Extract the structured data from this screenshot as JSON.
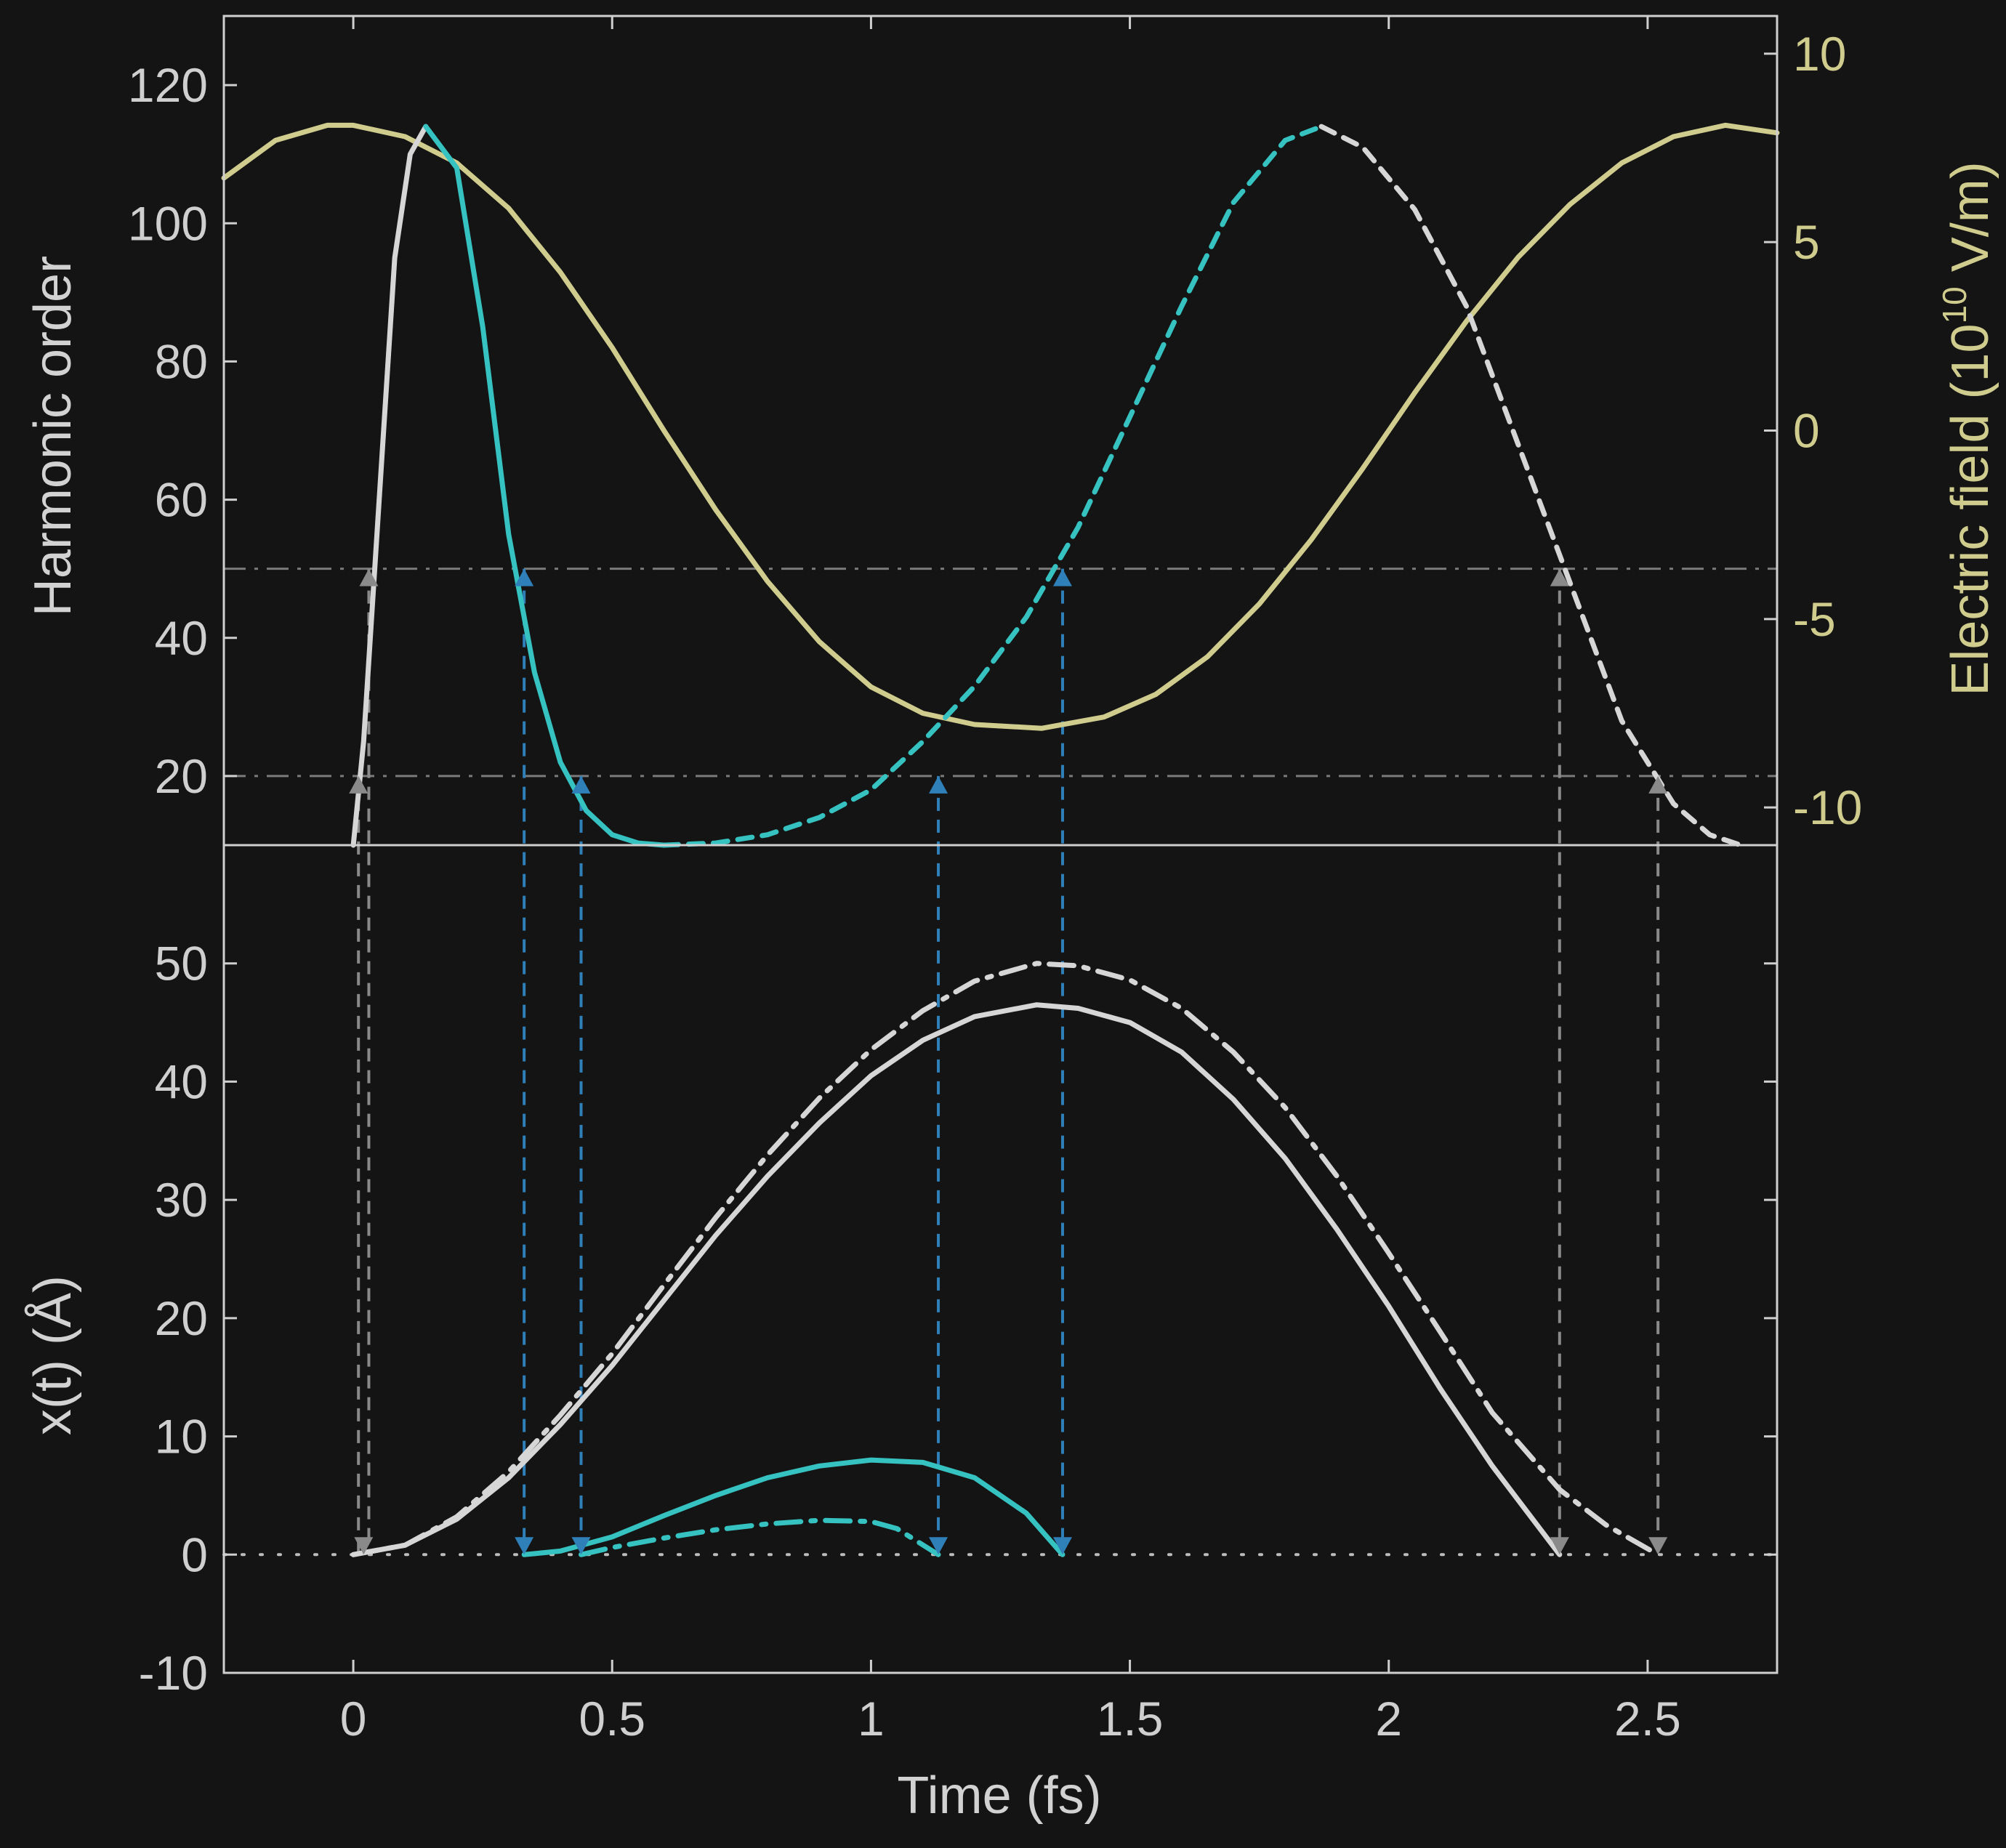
{
  "chart_data": [
    {
      "type": "line",
      "panel": "top",
      "xlabel": "Time (fs)",
      "ylabel": "Harmonic order",
      "y2label_main": "Electric field (10",
      "y2label_sup": "10",
      "y2label_tail": " V/m)",
      "xlim": [
        -0.25,
        2.75
      ],
      "ylim": [
        10,
        130
      ],
      "y2lim": [
        -11,
        11
      ],
      "yticks": [
        20,
        40,
        60,
        80,
        100,
        120
      ],
      "y2ticks": [
        -10,
        -5,
        0,
        5,
        10
      ],
      "ytick_labels": [
        "20",
        "40",
        "60",
        "80",
        "100",
        "120"
      ],
      "y2tick_labels": [
        "-10",
        "-5",
        "0",
        "5",
        "10"
      ],
      "reference_lines": [
        50,
        20
      ],
      "series": [
        {
          "role": "electric-field",
          "axis": "right",
          "color": "#cfcc8e",
          "style": "solid",
          "x": [
            -0.25,
            -0.15,
            -0.05,
            0.0,
            0.1,
            0.2,
            0.3,
            0.4,
            0.5,
            0.6,
            0.7,
            0.8,
            0.9,
            1.0,
            1.1,
            1.2,
            1.33,
            1.45,
            1.55,
            1.65,
            1.75,
            1.85,
            1.95,
            2.05,
            2.15,
            2.25,
            2.35,
            2.45,
            2.55,
            2.65,
            2.75
          ],
          "y": [
            6.7,
            7.7,
            8.1,
            8.1,
            7.8,
            7.1,
            5.9,
            4.2,
            2.2,
            0.0,
            -2.1,
            -4.0,
            -5.6,
            -6.8,
            -7.5,
            -7.8,
            -7.9,
            -7.6,
            -7.0,
            -6.0,
            -4.6,
            -2.9,
            -1.0,
            1.0,
            2.9,
            4.6,
            6.0,
            7.1,
            7.8,
            8.1,
            7.9
          ]
        },
        {
          "role": "short-and-long-trajectories",
          "axis": "left",
          "color": "#d6d6d6",
          "style": "solid",
          "x": [
            0.0,
            0.02,
            0.05,
            0.08,
            0.11,
            0.14
          ],
          "y": [
            10,
            25,
            60,
            95,
            110,
            114
          ]
        },
        {
          "axis": "left",
          "color": "#36c2c0",
          "style": "solid",
          "x": [
            0.14,
            0.2,
            0.25,
            0.3,
            0.35,
            0.4,
            0.45,
            0.5,
            0.55,
            0.6
          ],
          "y": [
            114,
            108,
            85,
            55,
            35,
            22,
            15,
            11.5,
            10.3,
            10
          ]
        },
        {
          "axis": "left",
          "color": "#36c2c0",
          "style": "dashed",
          "x": [
            0.6,
            0.7,
            0.8,
            0.9,
            1.0,
            1.1,
            1.2,
            1.3,
            1.4,
            1.5,
            1.6,
            1.7,
            1.8,
            1.87
          ],
          "y": [
            10,
            10.3,
            11.5,
            14,
            18,
            25,
            33,
            43,
            56,
            72,
            88,
            103,
            112,
            114
          ]
        },
        {
          "axis": "left",
          "color": "#d6d6d6",
          "style": "dashed",
          "x": [
            1.87,
            1.95,
            2.05,
            2.15,
            2.25,
            2.35,
            2.45,
            2.55,
            2.62,
            2.68
          ],
          "y": [
            114,
            111,
            102,
            88,
            68,
            48,
            28,
            16,
            11.5,
            10
          ]
        }
      ],
      "markers": [
        {
          "x": 0.03,
          "y": 50,
          "dir": "up",
          "color": "gray"
        },
        {
          "x": 0.01,
          "y": 20,
          "dir": "up",
          "color": "gray"
        },
        {
          "x": 0.33,
          "y": 50,
          "dir": "up",
          "color": "blue"
        },
        {
          "x": 0.44,
          "y": 20,
          "dir": "up",
          "color": "blue"
        },
        {
          "x": 1.13,
          "y": 20,
          "dir": "up",
          "color": "blue"
        },
        {
          "x": 1.37,
          "y": 50,
          "dir": "up",
          "color": "blue"
        },
        {
          "x": 2.33,
          "y": 50,
          "dir": "up",
          "color": "gray"
        },
        {
          "x": 2.52,
          "y": 20,
          "dir": "up",
          "color": "gray"
        }
      ]
    },
    {
      "type": "line",
      "panel": "bottom",
      "xlabel": "Time (fs)",
      "ylabel": "x(t) (Å)",
      "xlim": [
        -0.25,
        2.75
      ],
      "ylim": [
        -10,
        60
      ],
      "xticks": [
        0,
        0.5,
        1,
        1.5,
        2,
        2.5
      ],
      "xtick_labels": [
        "0",
        "0.5",
        "1",
        "1.5",
        "2",
        "2.5"
      ],
      "yticks": [
        -10,
        0,
        10,
        20,
        30,
        40,
        50
      ],
      "ytick_labels": [
        "-10",
        "0",
        "10",
        "20",
        "30",
        "40",
        "50"
      ],
      "series": [
        {
          "color": "#d6d6d6",
          "style": "solid",
          "x": [
            0.0,
            0.1,
            0.2,
            0.3,
            0.4,
            0.5,
            0.6,
            0.7,
            0.8,
            0.9,
            1.0,
            1.1,
            1.2,
            1.32,
            1.4,
            1.5,
            1.6,
            1.7,
            1.8,
            1.9,
            2.0,
            2.1,
            2.2,
            2.33
          ],
          "y": [
            0,
            0.8,
            3,
            6.5,
            11,
            16,
            21.5,
            27,
            32,
            36.5,
            40.5,
            43.5,
            45.5,
            46.5,
            46.2,
            45,
            42.5,
            38.5,
            33.5,
            27.5,
            21,
            14,
            7.5,
            0
          ]
        },
        {
          "color": "#d6d6d6",
          "style": "dashdot",
          "x": [
            0.0,
            0.1,
            0.2,
            0.3,
            0.4,
            0.5,
            0.6,
            0.7,
            0.8,
            0.9,
            1.0,
            1.1,
            1.2,
            1.32,
            1.4,
            1.5,
            1.6,
            1.7,
            1.8,
            1.9,
            2.0,
            2.1,
            2.2,
            2.33,
            2.42,
            2.52
          ],
          "y": [
            0,
            0.8,
            3.2,
            7,
            11.8,
            17,
            22.8,
            28.5,
            33.8,
            38.6,
            42.7,
            46,
            48.5,
            50,
            49.8,
            48.6,
            46.2,
            42.5,
            37.8,
            32,
            25.5,
            18.8,
            12,
            5.5,
            2.5,
            0
          ]
        },
        {
          "color": "#36c2c0",
          "style": "solid",
          "x": [
            0.33,
            0.4,
            0.5,
            0.6,
            0.7,
            0.8,
            0.9,
            1.0,
            1.1,
            1.2,
            1.3,
            1.37
          ],
          "y": [
            0,
            0.3,
            1.5,
            3.3,
            5,
            6.5,
            7.5,
            8,
            7.8,
            6.5,
            3.5,
            0
          ]
        },
        {
          "color": "#36c2c0",
          "style": "dashdot",
          "x": [
            0.44,
            0.5,
            0.6,
            0.7,
            0.8,
            0.9,
            1.0,
            1.05,
            1.13
          ],
          "y": [
            0,
            0.6,
            1.4,
            2.1,
            2.6,
            2.9,
            2.8,
            2.2,
            0
          ]
        }
      ],
      "markers": [
        {
          "x": 0.02,
          "y": 0,
          "dir": "down",
          "color": "gray"
        },
        {
          "x": 0.33,
          "y": 0,
          "dir": "down",
          "color": "blue"
        },
        {
          "x": 0.44,
          "y": 0,
          "dir": "down",
          "color": "blue"
        },
        {
          "x": 1.13,
          "y": 0,
          "dir": "down",
          "color": "blue"
        },
        {
          "x": 1.37,
          "y": 0,
          "dir": "down",
          "color": "blue"
        },
        {
          "x": 2.33,
          "y": 0,
          "dir": "down",
          "color": "gray"
        },
        {
          "x": 2.52,
          "y": 0,
          "dir": "down",
          "color": "gray"
        }
      ],
      "connectors": [
        {
          "x": 0.01,
          "color": "gray"
        },
        {
          "x": 0.03,
          "color": "gray"
        },
        {
          "x": 0.33,
          "color": "blue"
        },
        {
          "x": 0.44,
          "color": "blue"
        },
        {
          "x": 1.13,
          "color": "blue"
        },
        {
          "x": 1.37,
          "color": "blue"
        },
        {
          "x": 2.33,
          "color": "gray"
        },
        {
          "x": 2.52,
          "color": "gray"
        }
      ]
    }
  ],
  "colors": {
    "background": "#141414",
    "axes": "#cfcfcf",
    "field": "#cfcc8e",
    "white_traj": "#d6d6d6",
    "cyan_traj": "#36c2c0",
    "gray_arrow": "#8a8a8a",
    "blue_arrow": "#2f7fb8"
  }
}
